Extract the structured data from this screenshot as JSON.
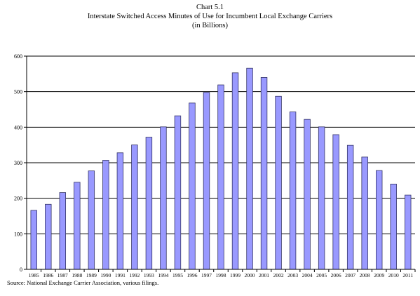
{
  "chart_title": "Chart 5.1",
  "chart_subtitle": "Interstate Switched Access Minutes of Use for Incumbent Local Exchange Carriers",
  "chart_units": "(in Billions)",
  "source_note": "Source:  National Exchange Carrier Association, various filings.",
  "colors": {
    "bar_fill": "#9999ff",
    "bar_stroke": "#333366",
    "grid": "#000000"
  },
  "chart_data": {
    "type": "bar",
    "title": "Interstate Switched Access Minutes of Use for Incumbent Local Exchange Carriers",
    "xlabel": "",
    "ylabel": "",
    "ylim": [
      0,
      600
    ],
    "yticks": [
      0,
      100,
      200,
      300,
      400,
      500,
      600
    ],
    "grid": true,
    "categories": [
      "1985",
      "1986",
      "1987",
      "1988",
      "1989",
      "1990",
      "1991",
      "1992",
      "1993",
      "1994",
      "1995",
      "1996",
      "1997",
      "1998",
      "1999",
      "2000",
      "2001",
      "2002",
      "2003",
      "2004",
      "2005",
      "2006",
      "2007",
      "2008",
      "2009",
      "2010",
      "2011"
    ],
    "values": [
      166,
      183,
      216,
      245,
      277,
      307,
      328,
      350,
      372,
      401,
      432,
      468,
      498,
      519,
      553,
      566,
      540,
      487,
      443,
      422,
      401,
      379,
      349,
      316,
      278,
      240,
      209
    ]
  }
}
